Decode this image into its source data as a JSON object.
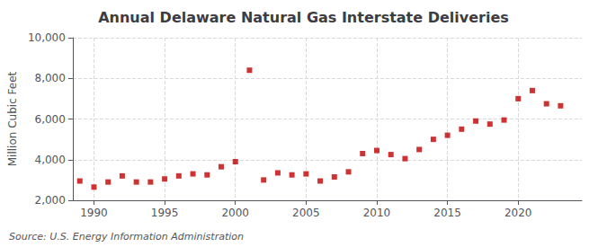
{
  "chart_data": {
    "type": "scatter",
    "title": "Annual Delaware Natural Gas Interstate Deliveries",
    "ylabel": "Million Cubic Feet",
    "annotations": [
      "Source: U.S. Energy Information Administration"
    ],
    "x": [
      1989,
      1990,
      1991,
      1992,
      1993,
      1994,
      1995,
      1996,
      1997,
      1998,
      1999,
      2000,
      2001,
      2002,
      2003,
      2004,
      2005,
      2006,
      2007,
      2008,
      2009,
      2010,
      2011,
      2012,
      2013,
      2014,
      2015,
      2016,
      2017,
      2018,
      2019,
      2020,
      2021,
      2022,
      2023
    ],
    "values": [
      2950,
      2650,
      2900,
      3200,
      2900,
      2900,
      3050,
      3200,
      3300,
      3250,
      3650,
      3900,
      8400,
      3000,
      3350,
      3250,
      3300,
      2950,
      3150,
      3400,
      4300,
      4450,
      4250,
      4050,
      4500,
      5000,
      5200,
      5500,
      5900,
      5750,
      5950,
      7000,
      7400,
      6750,
      6650
    ],
    "color": "#c00000",
    "marker": "square",
    "xlim": [
      1988.5,
      2024.5
    ],
    "xticks": [
      1990,
      1995,
      2000,
      2005,
      2010,
      2015,
      2020
    ],
    "ylim": [
      2000,
      10000
    ],
    "yticks": [
      {
        "value": 2000,
        "label": "2,000"
      },
      {
        "value": 4000,
        "label": "4,000"
      },
      {
        "value": 6000,
        "label": "6,000"
      },
      {
        "value": 8000,
        "label": "8,000"
      },
      {
        "value": 10000,
        "label": "10,000"
      }
    ],
    "grid": true
  }
}
